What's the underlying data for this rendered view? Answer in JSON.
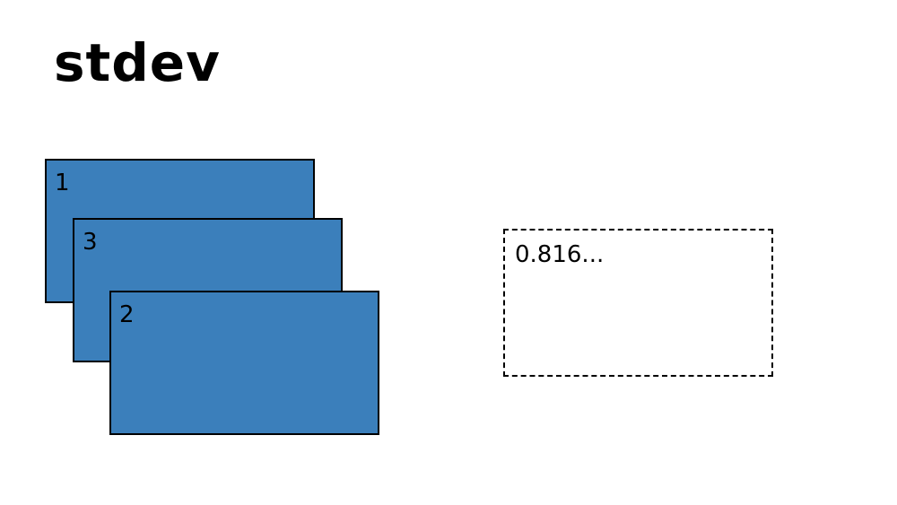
{
  "title": "stdev",
  "colors": {
    "card_fill": "#3b7fbb",
    "border": "#000000",
    "background": "#ffffff"
  },
  "cards": [
    {
      "label": "1"
    },
    {
      "label": "3"
    },
    {
      "label": "2"
    }
  ],
  "result": {
    "value": "0.816..."
  }
}
